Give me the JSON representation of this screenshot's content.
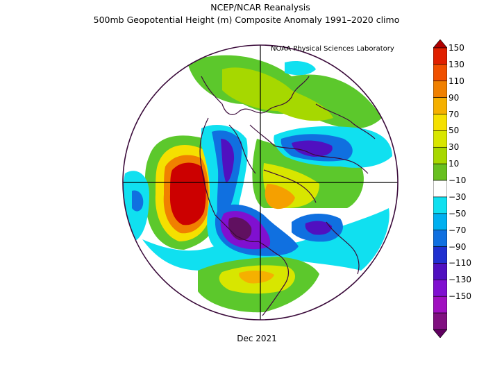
{
  "titles": {
    "line1": "NCEP/NCAR Reanalysis",
    "line2": "500mb Geopotential Height (m) Composite Anomaly 1991–2020 climo",
    "credit": "NOAA Physical Sciences Laboratory",
    "date": "Dec 2021"
  },
  "map": {
    "projection": "north-polar-stereographic",
    "variable": "500mb geopotential height anomaly",
    "units": "m",
    "anomaly_features": [
      {
        "region": "Gulf of Alaska / NE Pacific",
        "sign": "positive",
        "peak": 150
      },
      {
        "region": "Western Canada / Alaska interior",
        "sign": "negative",
        "peak": -90
      },
      {
        "region": "Siberia / northern Asia",
        "sign": "negative",
        "peak": -90
      },
      {
        "region": "Eastern Europe / Scandinavia",
        "sign": "negative",
        "peak": -90
      },
      {
        "region": "Northeastern Canada / Greenland",
        "sign": "positive",
        "peak": 90
      },
      {
        "region": "Southern United States / Mexico",
        "sign": "positive",
        "peak": 50
      },
      {
        "region": "Arctic Ocean",
        "sign": "positive",
        "peak": 50
      }
    ]
  },
  "colorbar": {
    "levels": [
      "150",
      "130",
      "110",
      "90",
      "70",
      "50",
      "30",
      "10",
      "−10",
      "−30",
      "−50",
      "−70",
      "−90",
      "−110",
      "−130",
      "−150"
    ],
    "colors": [
      "#b00000",
      "#e02000",
      "#f05000",
      "#f08000",
      "#f5b000",
      "#f5e000",
      "#d8e600",
      "#a8d800",
      "#68c020",
      "#ffffff",
      "#10e0f0",
      "#00b0f0",
      "#1070e0",
      "#2030d0",
      "#5010c0",
      "#8010d0",
      "#a010c0",
      "#801080",
      "#600060"
    ]
  }
}
